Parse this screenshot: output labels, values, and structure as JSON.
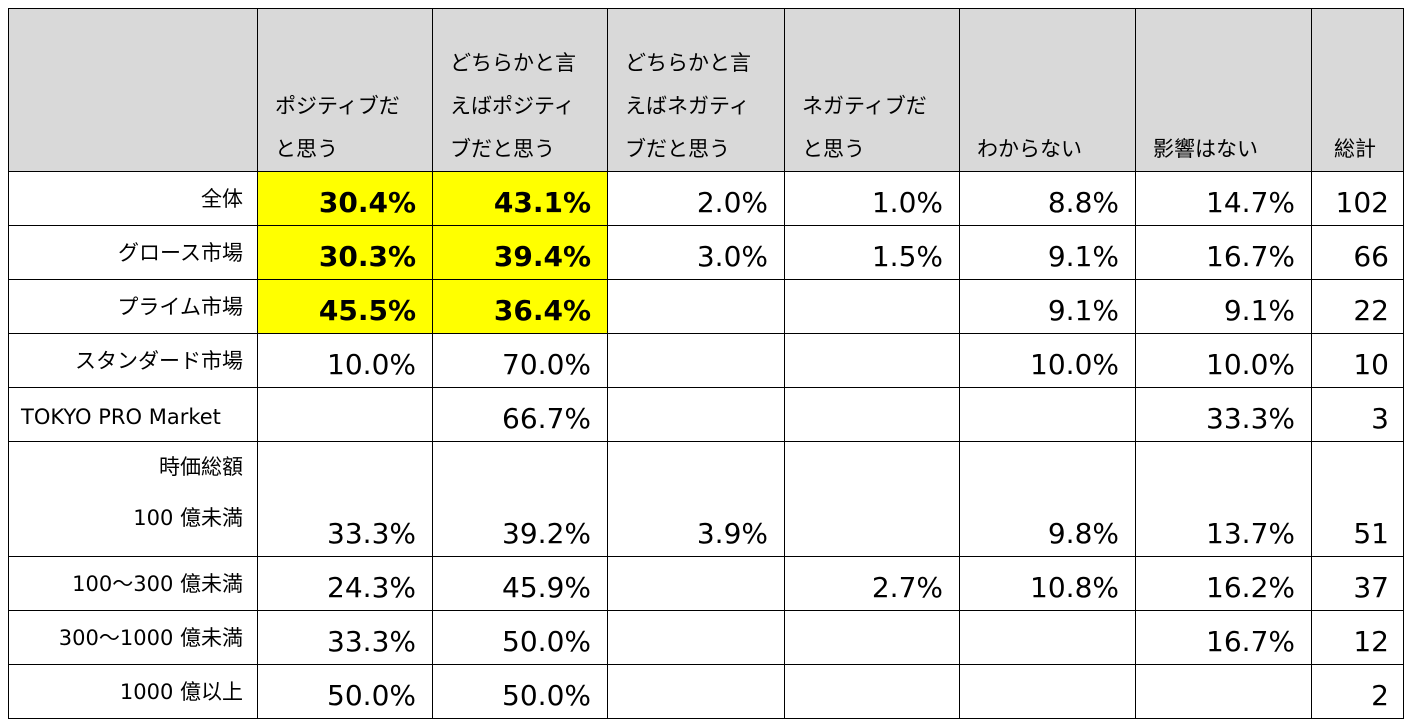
{
  "headers": [
    "",
    "ポジティブだと思う",
    "どちらかと言えばポジティブだと思う",
    "どちらかと言えばネガティブだと思う",
    "ネガティブだと思う",
    "わからない",
    "影響はない",
    "総計"
  ],
  "header_lines": [
    [],
    [
      "ポジティブだ",
      "と思う"
    ],
    [
      "どちらかと言",
      "えばポジティ",
      "ブだと思う"
    ],
    [
      "どちらかと言",
      "えばネガティ",
      "ブだと思う"
    ],
    [
      "ネガティブだ",
      "と思う"
    ],
    [
      "わからない"
    ],
    [
      "影響はない"
    ],
    [
      "総計"
    ]
  ],
  "rows": [
    {
      "label": "全体",
      "cells": [
        "30.4%",
        "43.1%",
        "2.0%",
        "1.0%",
        "8.8%",
        "14.7%",
        "102"
      ],
      "highlight": [
        0,
        1
      ]
    },
    {
      "label": "グロース市場",
      "cells": [
        "30.3%",
        "39.4%",
        "3.0%",
        "1.5%",
        "9.1%",
        "16.7%",
        "66"
      ],
      "highlight": [
        0,
        1
      ]
    },
    {
      "label": "プライム市場",
      "cells": [
        "45.5%",
        "36.4%",
        "",
        "",
        "9.1%",
        "9.1%",
        "22"
      ],
      "highlight": [
        0,
        1
      ]
    },
    {
      "label": "スタンダード市場",
      "cells": [
        "10.0%",
        "70.0%",
        "",
        "",
        "10.0%",
        "10.0%",
        "10"
      ],
      "highlight": []
    },
    {
      "label": "TOKYO PRO Market",
      "cells": [
        "",
        "66.7%",
        "",
        "",
        "",
        "33.3%",
        "3"
      ],
      "highlight": []
    },
    {
      "label_group": "時価総額",
      "label": "100 億未満",
      "cells": [
        "33.3%",
        "39.2%",
        "3.9%",
        "",
        "9.8%",
        "13.7%",
        "51"
      ],
      "highlight": []
    },
    {
      "label": "100～300 億未満",
      "cells": [
        "24.3%",
        "45.9%",
        "",
        "2.7%",
        "10.8%",
        "16.2%",
        "37"
      ],
      "highlight": []
    },
    {
      "label": "300～1000 億未満",
      "cells": [
        "33.3%",
        "50.0%",
        "",
        "",
        "",
        "16.7%",
        "12"
      ],
      "highlight": []
    },
    {
      "label": "1000 億以上",
      "cells": [
        "50.0%",
        "50.0%",
        "",
        "",
        "",
        "",
        "2"
      ],
      "highlight": []
    }
  ],
  "colors": {
    "highlight": "#ffff00",
    "header_bg": "#d9d9d9",
    "border": "#000000"
  }
}
